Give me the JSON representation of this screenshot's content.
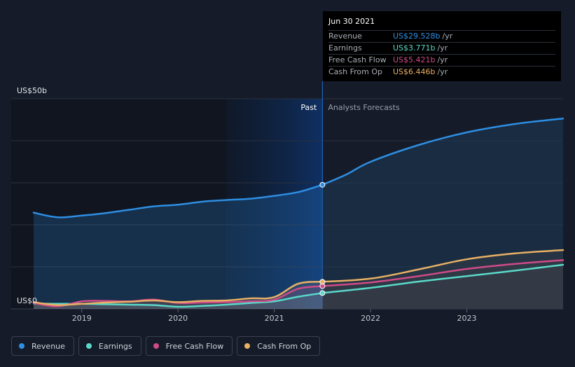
{
  "chart_data": {
    "type": "line",
    "ylabel_top": "US$50b",
    "ylabel_bottom": "US$0",
    "ylim": [
      0,
      50
    ],
    "xlim": [
      2018.5,
      2024.0
    ],
    "x_ticks": [
      {
        "value": 2019,
        "label": "2019"
      },
      {
        "value": 2020,
        "label": "2020"
      },
      {
        "value": 2021,
        "label": "2021"
      },
      {
        "value": 2022,
        "label": "2022"
      },
      {
        "value": 2023,
        "label": "2023"
      }
    ],
    "gridlines": [
      50,
      40,
      30,
      20,
      10
    ],
    "past_label": "Past",
    "forecast_label": "Analysts Forecasts",
    "past_highlight_start": 2020.5,
    "divider_x": 2021.5,
    "series": [
      {
        "name": "Revenue",
        "color": "#2e8ee3",
        "past": [
          [
            2018.5,
            22.9
          ],
          [
            2018.75,
            21.8
          ],
          [
            2019.0,
            22.2
          ],
          [
            2019.25,
            22.8
          ],
          [
            2019.5,
            23.6
          ],
          [
            2019.75,
            24.4
          ],
          [
            2020.0,
            24.8
          ],
          [
            2020.25,
            25.5
          ],
          [
            2020.5,
            25.9
          ],
          [
            2020.75,
            26.2
          ],
          [
            2021.0,
            26.9
          ],
          [
            2021.25,
            27.8
          ],
          [
            2021.5,
            29.528
          ]
        ],
        "forecast": [
          [
            2021.5,
            29.528
          ],
          [
            2021.75,
            32.0
          ],
          [
            2022.0,
            35.0
          ],
          [
            2022.5,
            39.0
          ],
          [
            2023.0,
            42.0
          ],
          [
            2023.5,
            44.0
          ],
          [
            2024.0,
            45.3
          ]
        ]
      },
      {
        "name": "Earnings",
        "color": "#5ad9c9",
        "past": [
          [
            2018.5,
            1.3
          ],
          [
            2018.75,
            1.2
          ],
          [
            2019.0,
            1.2
          ],
          [
            2019.25,
            1.1
          ],
          [
            2019.5,
            1.0
          ],
          [
            2019.75,
            0.9
          ],
          [
            2020.0,
            0.5
          ],
          [
            2020.25,
            0.7
          ],
          [
            2020.5,
            1.0
          ],
          [
            2020.75,
            1.4
          ],
          [
            2021.0,
            1.8
          ],
          [
            2021.25,
            2.9
          ],
          [
            2021.5,
            3.771
          ]
        ],
        "forecast": [
          [
            2021.5,
            3.771
          ],
          [
            2022.0,
            5.0
          ],
          [
            2022.5,
            6.5
          ],
          [
            2023.0,
            7.8
          ],
          [
            2023.5,
            9.1
          ],
          [
            2024.0,
            10.5
          ]
        ]
      },
      {
        "name": "Free Cash Flow",
        "color": "#cf4b88",
        "past": [
          [
            2018.5,
            1.4
          ],
          [
            2018.75,
            0.6
          ],
          [
            2019.0,
            1.8
          ],
          [
            2019.25,
            1.9
          ],
          [
            2019.5,
            1.8
          ],
          [
            2019.75,
            2.2
          ],
          [
            2020.0,
            1.4
          ],
          [
            2020.25,
            1.5
          ],
          [
            2020.5,
            1.6
          ],
          [
            2020.75,
            1.8
          ],
          [
            2021.0,
            2.2
          ],
          [
            2021.25,
            4.8
          ],
          [
            2021.5,
            5.421
          ]
        ],
        "forecast": [
          [
            2021.5,
            5.421
          ],
          [
            2022.0,
            6.3
          ],
          [
            2022.5,
            7.8
          ],
          [
            2023.0,
            9.5
          ],
          [
            2023.5,
            10.7
          ],
          [
            2024.0,
            11.6
          ]
        ]
      },
      {
        "name": "Cash From Op",
        "color": "#e8b064",
        "past": [
          [
            2018.5,
            1.6
          ],
          [
            2018.75,
            0.9
          ],
          [
            2019.0,
            1.2
          ],
          [
            2019.25,
            1.5
          ],
          [
            2019.5,
            1.7
          ],
          [
            2019.75,
            2.0
          ],
          [
            2020.0,
            1.6
          ],
          [
            2020.25,
            1.9
          ],
          [
            2020.5,
            2.0
          ],
          [
            2020.75,
            2.5
          ],
          [
            2021.0,
            2.8
          ],
          [
            2021.25,
            6.0
          ],
          [
            2021.5,
            6.446
          ]
        ],
        "forecast": [
          [
            2021.5,
            6.446
          ],
          [
            2022.0,
            7.2
          ],
          [
            2022.5,
            9.4
          ],
          [
            2023.0,
            11.8
          ],
          [
            2023.5,
            13.2
          ],
          [
            2024.0,
            14.0
          ]
        ]
      }
    ]
  },
  "tooltip": {
    "date": "Jun 30 2021",
    "rows": [
      {
        "label": "Revenue",
        "value": "US$29.528b",
        "unit": "/yr",
        "color": "#2e8ee3"
      },
      {
        "label": "Earnings",
        "value": "US$3.771b",
        "unit": "/yr",
        "color": "#5ad9c9"
      },
      {
        "label": "Free Cash Flow",
        "value": "US$5.421b",
        "unit": "/yr",
        "color": "#cf4b88"
      },
      {
        "label": "Cash From Op",
        "value": "US$6.446b",
        "unit": "/yr",
        "color": "#e8b064"
      }
    ]
  },
  "legend": [
    {
      "label": "Revenue",
      "color": "#2e8ee3"
    },
    {
      "label": "Earnings",
      "color": "#5ad9c9"
    },
    {
      "label": "Free Cash Flow",
      "color": "#cf4b88"
    },
    {
      "label": "Cash From Op",
      "color": "#e8b064"
    }
  ]
}
